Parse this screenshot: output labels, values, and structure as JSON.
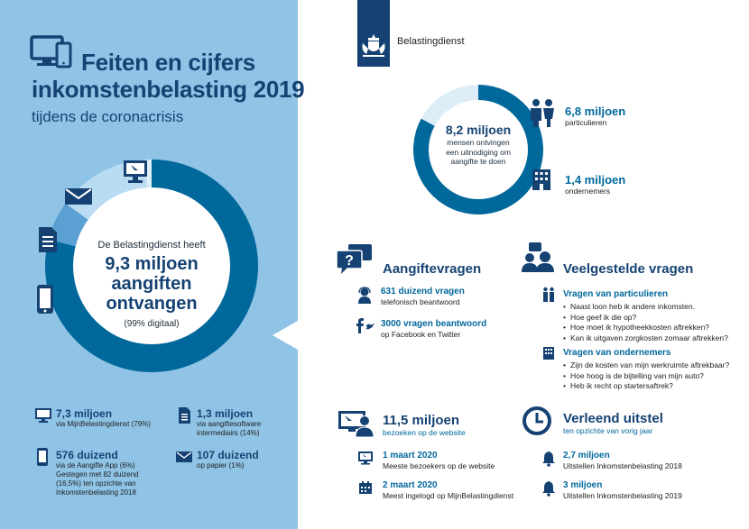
{
  "header": {
    "title_line1": "Feiten en cijfers",
    "title_line2": "inkomstenbelasting 2019",
    "subtitle": "tijdens de coronacrisis",
    "org_name": "Belastingdienst"
  },
  "left_donut": {
    "intro": "De Belastingdienst heeft",
    "value_line1": "9,3 miljoen",
    "value_line2": "aangiften",
    "value_line3": "ontvangen",
    "note": "(99% digitaal)",
    "segments": [
      {
        "label": "MijnBelastingdienst",
        "percent": 79,
        "color": "#01689b"
      },
      {
        "label": "Aangifte App",
        "percent": 6,
        "color": "#5aa0d2"
      },
      {
        "label": "aangiftesoftware intermediairs",
        "percent": 14,
        "color": "#b9dcf2"
      },
      {
        "label": "op papier",
        "percent": 1,
        "color": "#dcedf8"
      }
    ]
  },
  "left_stats": [
    {
      "icon": "monitor-icon",
      "value": "7,3 miljoen",
      "desc": [
        "via MijnBelastingdienst (79%)"
      ]
    },
    {
      "icon": "document-icon",
      "value": "1,3 miljoen",
      "desc": [
        "via aangiftesoftware",
        "intermediairs (14%)"
      ]
    },
    {
      "icon": "phone-icon",
      "value": "576 duizend",
      "desc": [
        "via de Aangifte App (6%)",
        "Gestegen met 82 duizend",
        "(16,5%) ten opzichte van",
        "Inkomstenbelasting 2018"
      ]
    },
    {
      "icon": "envelope-icon",
      "value": "107 duizend",
      "desc": [
        "op papier (1%)"
      ]
    }
  ],
  "right_donut": {
    "value": "8,2 miljoen",
    "desc": [
      "mensen ontvingen",
      "een uitnodiging om",
      "aangifte te doen"
    ],
    "segments": [
      {
        "label": "particulieren",
        "value": 6.8,
        "color": "#01689b"
      },
      {
        "label": "ondernemers",
        "value": 1.4,
        "color": "#dcedf8"
      }
    ],
    "items": [
      {
        "icon": "people-icon",
        "value": "6,8 miljoen",
        "label": "particulieren"
      },
      {
        "icon": "building-icon",
        "value": "1,4 miljoen",
        "label": "ondernemers"
      }
    ]
  },
  "aangiftevragen": {
    "title": "Aangiftevragen",
    "items": [
      {
        "icon": "call-center-icon",
        "value": "631 duizend vragen",
        "label": "telefonisch beantwoord"
      },
      {
        "icon": "social-media-icon",
        "value": "3000 vragen beantwoord",
        "label": "op Facebook en Twitter"
      }
    ]
  },
  "veelgestelde": {
    "title": "Veelgestelde vragen",
    "particulieren": {
      "heading": "Vragen van particulieren",
      "items": [
        "Naast loon heb ik andere inkomsten.",
        "Hoe geef ik die op?",
        "Hoe moet ik hypotheekkosten aftrekken?",
        "Kan ik uitgaven zorgkosten zomaar aftrekken?"
      ]
    },
    "ondernemers": {
      "heading": "Vragen van ondernemers",
      "items": [
        "Zijn de kosten van mijn werkruimte aftrekbaar?",
        "Hoe hoog is de bijtelling van mijn auto?",
        "Heb ik recht op startersaftrek?"
      ]
    }
  },
  "website": {
    "value": "11,5 miljoen",
    "label": "bezoeken op de website",
    "items": [
      {
        "date": "1 maart 2020",
        "label": "Meeste bezoekers op de website"
      },
      {
        "date": "2 maart 2020",
        "label": "Meest ingelogd op MijnBelastingdienst"
      }
    ]
  },
  "uitstel": {
    "title": "Verleend uitstel",
    "sub": "ten opzichte van vorig jaar",
    "items": [
      {
        "value": "2,7 miljoen",
        "label": "Uitstellen Inkomstenbelasting 2018"
      },
      {
        "value": "3 miljoen",
        "label": "Uitstellen Inkomstenbelasting 2019"
      }
    ]
  }
}
